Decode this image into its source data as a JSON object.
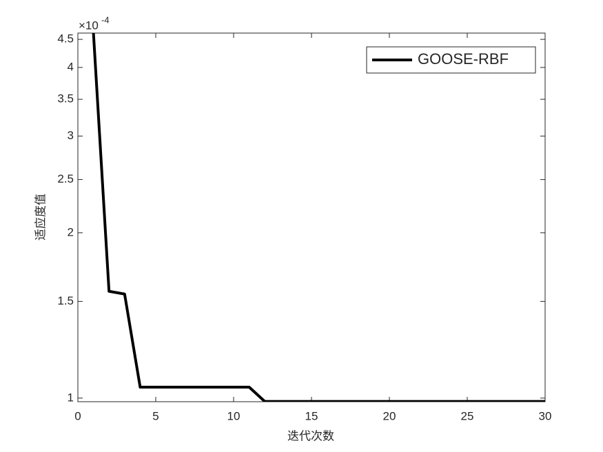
{
  "chart_data": {
    "type": "line",
    "x_label": "迭代次数",
    "y_label": "适应度值",
    "y_exponent": {
      "base": "×10",
      "power": "-4"
    },
    "x": [
      1,
      2,
      3,
      4,
      5,
      6,
      7,
      8,
      9,
      10,
      11,
      12,
      13,
      14,
      15,
      16,
      17,
      18,
      19,
      20,
      21,
      22,
      23,
      24,
      25,
      26,
      27,
      28,
      29,
      30
    ],
    "series": [
      {
        "name": "GOOSE-RBF",
        "color": "#000000",
        "values": [
          4.62,
          1.565,
          1.547,
          1.047,
          1.047,
          1.047,
          1.047,
          1.047,
          1.047,
          1.047,
          1.047,
          0.986,
          0.986,
          0.986,
          0.986,
          0.986,
          0.986,
          0.986,
          0.986,
          0.986,
          0.986,
          0.986,
          0.986,
          0.986,
          0.986,
          0.986,
          0.986,
          0.986,
          0.986,
          0.986
        ]
      }
    ],
    "xlim": [
      0,
      30
    ],
    "xticks": [
      0,
      5,
      10,
      15,
      20,
      25,
      30
    ],
    "ylim": [
      0.985,
      4.62
    ],
    "yticks": [
      1,
      1.5,
      2,
      2.5,
      3,
      3.5,
      4,
      4.5
    ],
    "yscale": "log",
    "grid": false,
    "legend": "upper right"
  }
}
